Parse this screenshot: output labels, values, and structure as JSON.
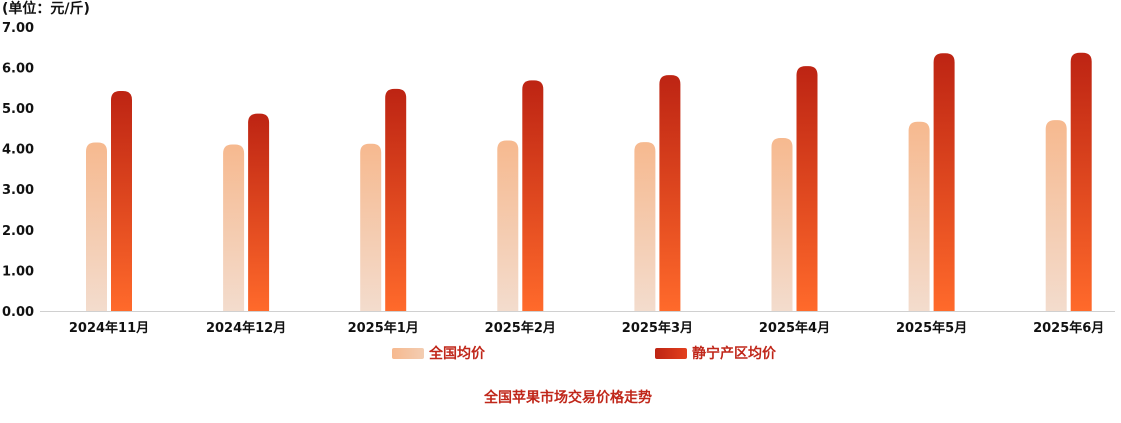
{
  "chart_data": {
    "type": "bar",
    "unit_label": "(单位：元/斤)",
    "title": "全国苹果市场交易价格走势",
    "categories": [
      "2024年11月",
      "2024年12月",
      "2025年1月",
      "2025年2月",
      "2025年3月",
      "2025年4月",
      "2025年5月",
      "2025年6月"
    ],
    "series": [
      {
        "name": "全国均价",
        "values": [
          4.15,
          4.1,
          4.12,
          4.2,
          4.16,
          4.26,
          4.66,
          4.7
        ],
        "color": "#f6b98f"
      },
      {
        "name": "静宁产区均价",
        "values": [
          5.42,
          4.86,
          5.47,
          5.68,
          5.81,
          6.03,
          6.35,
          6.36
        ],
        "color": "#c0271a"
      }
    ],
    "yticks": [
      "0.00",
      "1.00",
      "2.00",
      "3.00",
      "4.00",
      "5.00",
      "6.00",
      "7.00"
    ],
    "ylim": [
      0,
      7
    ],
    "legend_position": "bottom"
  }
}
